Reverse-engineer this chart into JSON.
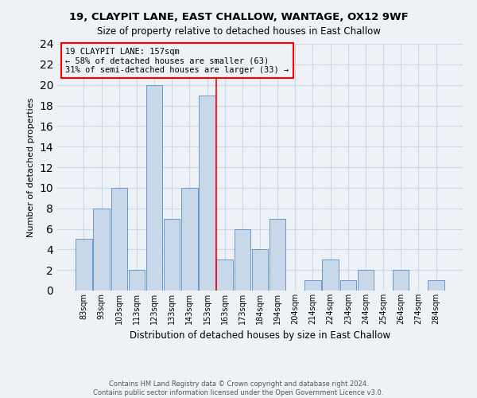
{
  "title1": "19, CLAYPIT LANE, EAST CHALLOW, WANTAGE, OX12 9WF",
  "title2": "Size of property relative to detached houses in East Challow",
  "xlabel": "Distribution of detached houses by size in East Challow",
  "ylabel": "Number of detached properties",
  "categories": [
    "83sqm",
    "93sqm",
    "103sqm",
    "113sqm",
    "123sqm",
    "133sqm",
    "143sqm",
    "153sqm",
    "163sqm",
    "173sqm",
    "184sqm",
    "194sqm",
    "204sqm",
    "214sqm",
    "224sqm",
    "234sqm",
    "244sqm",
    "254sqm",
    "264sqm",
    "274sqm",
    "284sqm"
  ],
  "values": [
    5,
    8,
    10,
    2,
    20,
    7,
    10,
    19,
    3,
    6,
    4,
    7,
    0,
    1,
    3,
    1,
    2,
    0,
    2,
    0,
    1
  ],
  "bar_color": "#c8d8e8",
  "bar_edge_color": "#6699cc",
  "grid_color": "#c8d8e8",
  "vline_color": "red",
  "annotation_line1": "19 CLAYPIT LANE: 157sqm",
  "annotation_line2": "← 58% of detached houses are smaller (63)",
  "annotation_line3": "31% of semi-detached houses are larger (33) →",
  "box_color": "red",
  "ylim": [
    0,
    24
  ],
  "yticks": [
    0,
    2,
    4,
    6,
    8,
    10,
    12,
    14,
    16,
    18,
    20,
    22,
    24
  ],
  "footer1": "Contains HM Land Registry data © Crown copyright and database right 2024.",
  "footer2": "Contains public sector information licensed under the Open Government Licence v3.0.",
  "bg_color": "#eef2f7"
}
